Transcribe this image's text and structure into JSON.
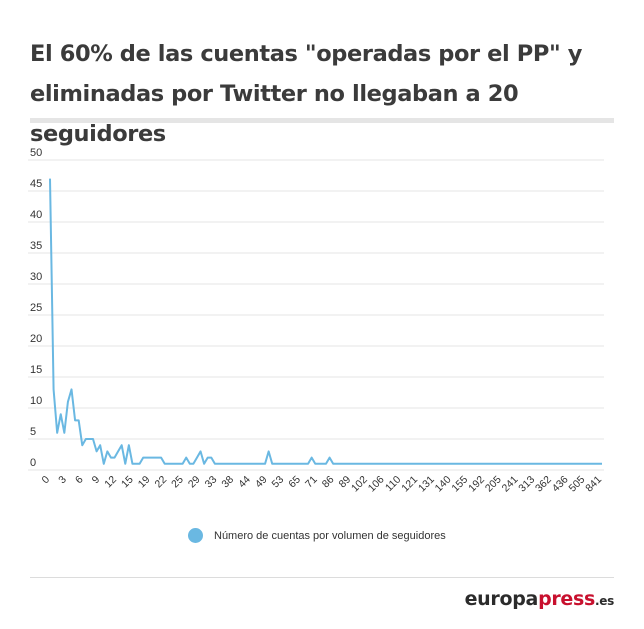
{
  "title": "El 60% de las cuentas \"operadas por el PP\" y eliminadas por Twitter no llegaban a 20 seguidores",
  "colors": {
    "series": "#6ab8e2",
    "grid": "#e4e4e4",
    "brand_red": "#c8102e"
  },
  "legend": {
    "label": "Número de cuentas por volumen de seguidores",
    "placement": "bottom"
  },
  "brand": {
    "part1": "europa",
    "part2": "press",
    "part3": ".es"
  },
  "chart_data": {
    "type": "line",
    "ylim": [
      0,
      50
    ],
    "yticks": [
      0,
      5,
      10,
      15,
      20,
      25,
      30,
      35,
      40,
      45,
      50
    ],
    "grid": true,
    "xtick_labels": [
      "0",
      "3",
      "6",
      "9",
      "12",
      "15",
      "19",
      "22",
      "25",
      "29",
      "33",
      "38",
      "44",
      "49",
      "53",
      "65",
      "71",
      "86",
      "89",
      "102",
      "106",
      "110",
      "121",
      "131",
      "140",
      "155",
      "192",
      "205",
      "241",
      "313",
      "362",
      "436",
      "505",
      "841"
    ],
    "series": [
      {
        "name": "Número de cuentas por volumen de seguidores",
        "values": [
          47,
          13,
          6,
          9,
          6,
          11,
          13,
          8,
          8,
          4,
          5,
          5,
          5,
          3,
          4,
          1,
          3,
          2,
          2,
          3,
          4,
          1,
          4,
          1,
          1,
          1,
          2,
          2,
          2,
          2,
          2,
          2,
          1,
          1,
          1,
          1,
          1,
          1,
          2,
          1,
          1,
          2,
          3,
          1,
          2,
          2,
          1,
          1,
          1,
          1,
          1,
          1,
          1,
          1,
          1,
          1,
          1,
          1,
          1,
          1,
          1,
          3,
          1,
          1,
          1,
          1,
          1,
          1,
          1,
          1,
          1,
          1,
          1,
          2,
          1,
          1,
          1,
          1,
          2,
          1,
          1,
          1,
          1,
          1,
          1,
          1,
          1,
          1,
          1,
          1,
          1,
          1,
          1,
          1,
          1,
          1,
          1,
          1,
          1,
          1,
          1,
          1,
          1,
          1,
          1,
          1,
          1,
          1,
          1,
          1,
          1,
          1,
          1,
          1,
          1,
          1,
          1,
          1,
          1,
          1,
          1,
          1,
          1,
          1,
          1,
          1,
          1,
          1,
          1,
          1,
          1,
          1,
          1,
          1,
          1,
          1,
          1,
          1,
          1,
          1,
          1,
          1,
          1,
          1,
          1,
          1,
          1,
          1,
          1,
          1,
          1,
          1,
          1,
          1,
          1
        ]
      }
    ]
  }
}
